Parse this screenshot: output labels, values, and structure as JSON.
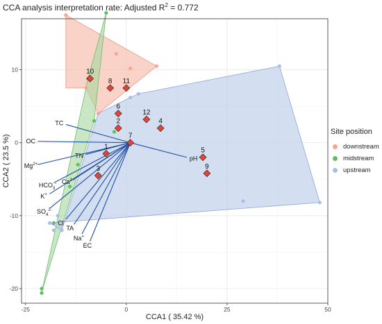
{
  "chart_data": {
    "type": "scatter",
    "title_main": "CCA analysis interpretation rate: Adjusted R",
    "title_sup": "2",
    "title_end": " = 0.772",
    "xlabel": "CCA1 ( 35.42 %)",
    "ylabel": "CCA2 ( 23.5 %)",
    "xlim": [
      -26,
      50
    ],
    "ylim": [
      -22,
      17
    ],
    "x_ticks": [
      -25,
      0,
      25,
      50
    ],
    "y_ticks": [
      -20,
      -10,
      0,
      10
    ],
    "grid": true,
    "legend_placement": "right",
    "legend": {
      "title": "Site position",
      "items": [
        {
          "label": "downstream",
          "color": "#f8a58f"
        },
        {
          "label": "midstream",
          "color": "#5fbf5f"
        },
        {
          "label": "upstream",
          "color": "#a9bee6"
        }
      ]
    },
    "hulls": [
      {
        "group": "downstream",
        "fill": "#f7b8a6",
        "stroke": "#e59a86",
        "points": [
          [
            -15,
            7.5
          ],
          [
            -15,
            17.5
          ],
          [
            7.5,
            10.5
          ],
          [
            -7,
            4
          ],
          [
            -10,
            7.5
          ]
        ]
      },
      {
        "group": "midstream",
        "fill": "#a8d8a0",
        "stroke": "#6fb86a",
        "points": [
          [
            -21,
            -20.5
          ],
          [
            -21,
            -20.5
          ],
          [
            -8,
            3
          ],
          [
            -5,
            17.8
          ],
          [
            -9.5,
            8.8
          ]
        ]
      },
      {
        "group": "upstream",
        "fill": "#b8c9e8",
        "stroke": "#8ea6d6",
        "points": [
          [
            -16,
            -12
          ],
          [
            -7,
            4
          ],
          [
            1,
            6.2
          ],
          [
            3,
            6.7
          ],
          [
            38,
            10.5
          ],
          [
            48,
            -8.2
          ],
          [
            -19,
            -11
          ]
        ]
      }
    ],
    "site_points": [
      {
        "group": "downstream",
        "x": -15,
        "y": 17.5
      },
      {
        "group": "downstream",
        "x": -2.5,
        "y": 12.2
      },
      {
        "group": "downstream",
        "x": 7.5,
        "y": 10.5
      },
      {
        "group": "downstream",
        "x": 1,
        "y": 10.2
      },
      {
        "group": "downstream",
        "x": -10,
        "y": 7.5
      },
      {
        "group": "downstream",
        "x": -7,
        "y": 4
      },
      {
        "group": "midstream",
        "x": -5,
        "y": 17.8
      },
      {
        "group": "midstream",
        "x": -9.5,
        "y": 8.8
      },
      {
        "group": "midstream",
        "x": -8,
        "y": 3
      },
      {
        "group": "midstream",
        "x": -3,
        "y": 1.5
      },
      {
        "group": "midstream",
        "x": -12,
        "y": -3
      },
      {
        "group": "midstream",
        "x": -14,
        "y": -6
      },
      {
        "group": "midstream",
        "x": -18,
        "y": -11
      },
      {
        "group": "midstream",
        "x": -21,
        "y": -20
      },
      {
        "group": "midstream",
        "x": -21,
        "y": -20.6
      },
      {
        "group": "upstream",
        "x": 3,
        "y": 6.7
      },
      {
        "group": "upstream",
        "x": 1,
        "y": 6.2
      },
      {
        "group": "upstream",
        "x": 38,
        "y": 10.5
      },
      {
        "group": "upstream",
        "x": 48,
        "y": -8.2
      },
      {
        "group": "upstream",
        "x": 29,
        "y": -8
      },
      {
        "group": "upstream",
        "x": -16,
        "y": -12
      },
      {
        "group": "upstream",
        "x": -19,
        "y": -11
      },
      {
        "group": "upstream",
        "x": -17,
        "y": -10
      },
      {
        "group": "upstream",
        "x": -18,
        "y": -12
      }
    ],
    "samples": [
      {
        "label": "1",
        "x": -5,
        "y": -1.5
      },
      {
        "label": "2",
        "x": -2,
        "y": 2
      },
      {
        "label": "3",
        "x": -7,
        "y": -4.5
      },
      {
        "label": "4",
        "x": 8.5,
        "y": 2
      },
      {
        "label": "5",
        "x": 19,
        "y": -2
      },
      {
        "label": "6",
        "x": -2,
        "y": 4
      },
      {
        "label": "7",
        "x": 1,
        "y": 0
      },
      {
        "label": "8",
        "x": -4,
        "y": 7.5
      },
      {
        "label": "9",
        "x": 20,
        "y": -4.2
      },
      {
        "label": "10",
        "x": -9,
        "y": 8.8
      },
      {
        "label": "11",
        "x": 0,
        "y": 7.5
      },
      {
        "label": "12",
        "x": 5,
        "y": 3.2
      }
    ],
    "vectors": [
      {
        "name": "TC",
        "sup": "",
        "sub": "",
        "x": -15,
        "y": 2.5
      },
      {
        "name": "OC",
        "sup": "",
        "sub": "",
        "x": -22,
        "y": 0.2
      },
      {
        "name": "TN",
        "sup": "",
        "sub": "",
        "x": -10,
        "y": -1.6
      },
      {
        "name": "Mg",
        "sup": "2+",
        "sub": "",
        "x": -22,
        "y": -3
      },
      {
        "name": "HCO",
        "sup": "-",
        "sub": "3",
        "x": -18,
        "y": -5.5
      },
      {
        "name": "Ca",
        "sup": "2+",
        "sub": "",
        "x": -13,
        "y": -5
      },
      {
        "name": "K",
        "sup": "+",
        "sub": "",
        "x": -19,
        "y": -7
      },
      {
        "name": "SO",
        "sup": "2-",
        "sub": "4",
        "x": -19,
        "y": -9
      },
      {
        "name": "Cl",
        "sup": "-",
        "sub": "",
        "x": -15,
        "y": -10.5
      },
      {
        "name": "TA",
        "sup": "",
        "sub": "",
        "x": -13,
        "y": -11.2
      },
      {
        "name": "Na",
        "sup": "+",
        "sub": "",
        "x": -11,
        "y": -12.5
      },
      {
        "name": "EC",
        "sup": "",
        "sub": "",
        "x": -9,
        "y": -13.5
      },
      {
        "name": "pH",
        "sup": "",
        "sub": "",
        "x": 15,
        "y": -2
      }
    ]
  }
}
